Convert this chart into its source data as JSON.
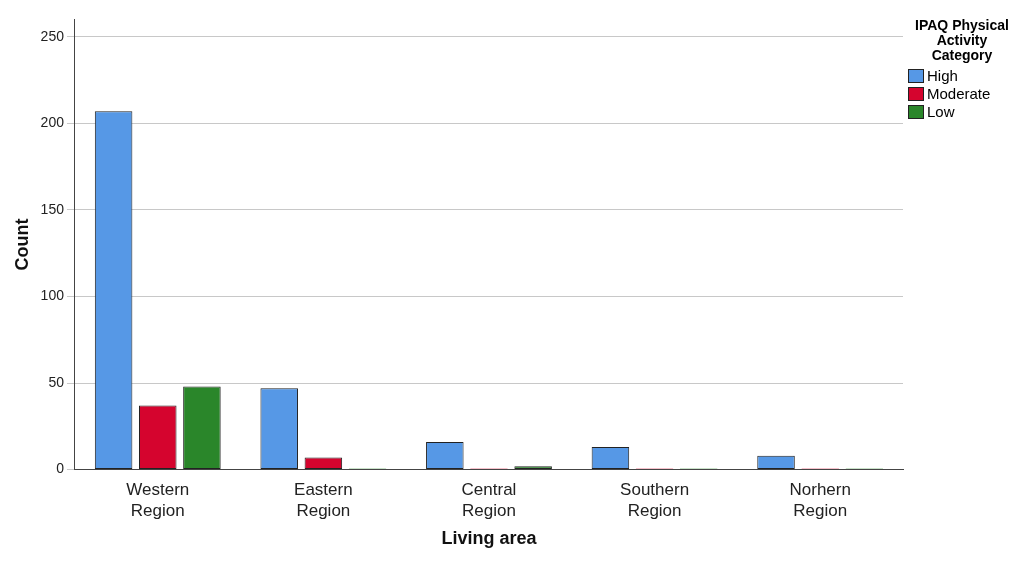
{
  "chart_data": {
    "type": "bar",
    "xlabel": "Living area",
    "ylabel": "Count",
    "legend_title": "IPAQ Physical Activity Category",
    "legend": "top right",
    "grid": "y",
    "categories": [
      "Western Region",
      "Eastern Region",
      "Central Region",
      "Southern Region",
      "Norhern Region"
    ],
    "ylim": [
      0,
      260
    ],
    "yticks": [
      0,
      50,
      100,
      150,
      200,
      250
    ],
    "series": [
      {
        "name": "High",
        "color": "#5698e6",
        "values": [
          207,
          47,
          16,
          13,
          8
        ]
      },
      {
        "name": "Moderate",
        "color": "#d5042e",
        "values": [
          37,
          7,
          0,
          0,
          0
        ]
      },
      {
        "name": "Low",
        "color": "#2a862a",
        "values": [
          48,
          0,
          2,
          0,
          0
        ]
      }
    ]
  }
}
